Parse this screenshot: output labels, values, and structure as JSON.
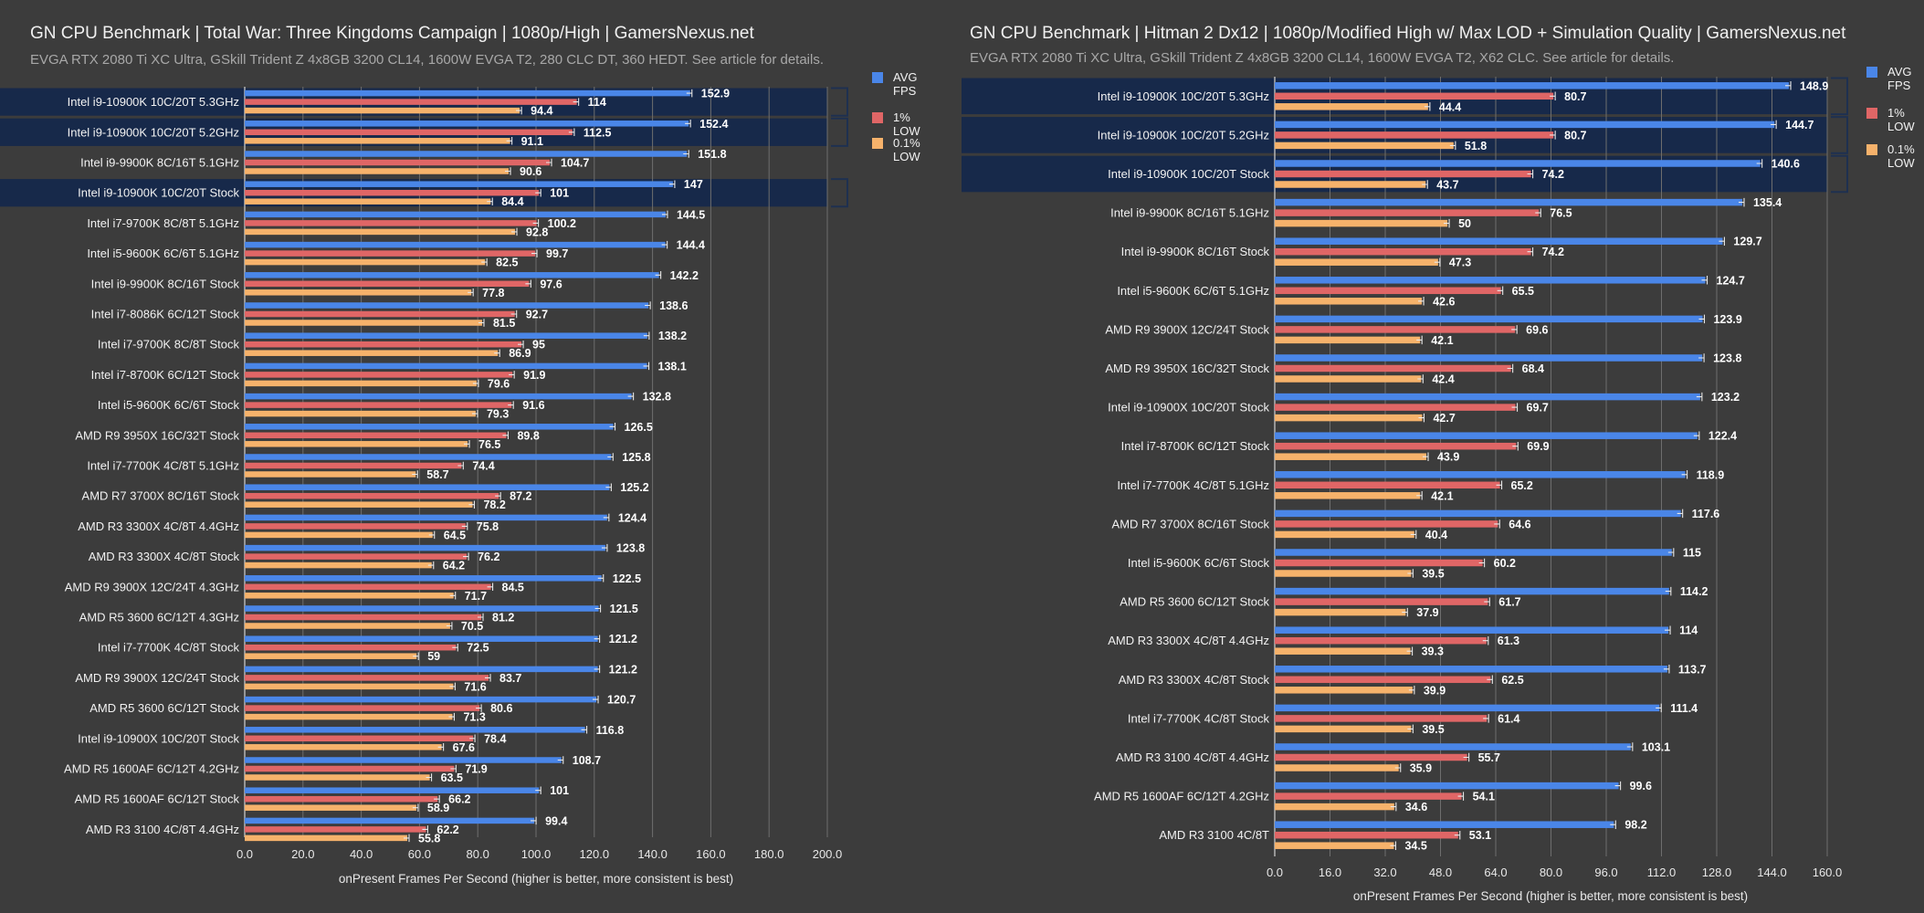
{
  "chart_data": [
    {
      "type": "bar",
      "title": "GN CPU Benchmark | Total War: Three Kingdoms Campaign | 1080p/High | GamersNexus.net",
      "subtitle": "EVGA RTX 2080 Ti XC Ultra, GSkill Trident Z 4x8GB 3200 CL14, 1600W EVGA T2, 280 CLC DT, 360 HEDT. See article for details.",
      "xlabel": "onPresent Frames Per Second (higher is better, more consistent is best)",
      "ylabel": "",
      "xlim": [
        0,
        200
      ],
      "xticks": [
        "0.0",
        "20.0",
        "40.0",
        "60.0",
        "80.0",
        "100.0",
        "120.0",
        "140.0",
        "160.0",
        "180.0",
        "200.0"
      ],
      "grid": true,
      "legend_position": "top-right",
      "highlighted": [
        "Intel i9-10900K 10C/20T 5.3GHz",
        "Intel i9-10900K 10C/20T 5.2GHz",
        "Intel i9-10900K 10C/20T Stock"
      ],
      "categories": [
        "Intel i9-10900K 10C/20T 5.3GHz",
        "Intel i9-10900K 10C/20T 5.2GHz",
        "Intel i9-9900K 8C/16T 5.1GHz",
        "Intel i9-10900K 10C/20T Stock",
        "Intel i7-9700K 8C/8T 5.1GHz",
        "Intel i5-9600K 6C/6T 5.1GHz",
        "Intel i9-9900K 8C/16T Stock",
        "Intel i7-8086K 6C/12T Stock",
        "Intel i7-9700K 8C/8T Stock",
        "Intel i7-8700K 6C/12T Stock",
        "Intel i5-9600K 6C/6T Stock",
        "AMD R9 3950X 16C/32T Stock",
        "Intel i7-7700K 4C/8T 5.1GHz",
        "AMD R7 3700X 8C/16T Stock",
        "AMD R3 3300X 4C/8T 4.4GHz",
        "AMD R3 3300X 4C/8T Stock",
        "AMD R9 3900X 12C/24T 4.3GHz",
        "AMD R5 3600 6C/12T 4.3GHz",
        "Intel i7-7700K 4C/8T Stock",
        "AMD R9 3900X 12C/24T Stock",
        "AMD R5 3600 6C/12T Stock",
        "Intel i9-10900X 10C/20T Stock",
        "AMD R5 1600AF 6C/12T 4.2GHz",
        "AMD R5 1600AF 6C/12T Stock",
        "AMD R3 3100 4C/8T 4.4GHz"
      ],
      "series": [
        {
          "name": "AVG FPS",
          "color": "#4a86e8",
          "values": [
            152.9,
            152.4,
            151.8,
            147.0,
            144.5,
            144.4,
            142.2,
            138.6,
            138.2,
            138.1,
            132.8,
            126.5,
            125.8,
            125.2,
            124.4,
            123.8,
            122.5,
            121.5,
            121.2,
            121.2,
            120.7,
            116.8,
            108.7,
            101.0,
            99.4
          ]
        },
        {
          "name": "1% LOW",
          "color": "#e06666",
          "values": [
            114.0,
            112.5,
            104.7,
            101.0,
            100.2,
            99.7,
            97.6,
            92.7,
            95.0,
            91.9,
            91.6,
            89.8,
            74.4,
            87.2,
            75.8,
            76.2,
            84.5,
            81.2,
            72.5,
            83.7,
            80.6,
            78.4,
            71.9,
            66.2,
            62.2
          ]
        },
        {
          "name": "0.1% LOW",
          "color": "#f6b26b",
          "values": [
            94.4,
            91.1,
            90.6,
            84.4,
            92.8,
            82.5,
            77.8,
            81.5,
            86.9,
            79.6,
            79.3,
            76.5,
            58.7,
            78.2,
            64.5,
            64.2,
            71.7,
            70.5,
            59.0,
            71.6,
            71.3,
            67.6,
            63.5,
            58.9,
            55.8
          ]
        }
      ]
    },
    {
      "type": "bar",
      "title": "GN CPU Benchmark | Hitman 2 Dx12 | 1080p/Modified High w/ Max LOD + Simulation Quality | GamersNexus.net",
      "subtitle": "EVGA RTX 2080 Ti XC Ultra, GSkill Trident Z 4x8GB 3200 CL14, 1600W EVGA T2, X62 CLC. See article for details.",
      "xlabel": "onPresent Frames Per Second (higher is better, more consistent is best)",
      "ylabel": "",
      "xlim": [
        0,
        160
      ],
      "xticks": [
        "0.0",
        "16.0",
        "32.0",
        "48.0",
        "64.0",
        "80.0",
        "96.0",
        "112.0",
        "128.0",
        "144.0",
        "160.0"
      ],
      "grid": true,
      "legend_position": "top-right",
      "highlighted": [
        "Intel i9-10900K 10C/20T 5.3GHz",
        "Intel i9-10900K 10C/20T 5.2GHz",
        "Intel i9-10900K 10C/20T Stock"
      ],
      "categories": [
        "Intel i9-10900K 10C/20T 5.3GHz",
        "Intel i9-10900K 10C/20T 5.2GHz",
        "Intel i9-10900K 10C/20T Stock",
        "Intel i9-9900K 8C/16T 5.1GHz",
        "Intel i9-9900K 8C/16T Stock",
        "Intel i5-9600K 6C/6T 5.1GHz",
        "AMD R9 3900X 12C/24T Stock",
        "AMD R9 3950X 16C/32T Stock",
        "Intel i9-10900X 10C/20T Stock",
        "Intel i7-8700K 6C/12T Stock",
        "Intel i7-7700K 4C/8T 5.1GHz",
        "AMD R7 3700X 8C/16T Stock",
        "Intel i5-9600K 6C/6T Stock",
        "AMD R5 3600 6C/12T Stock",
        "AMD R3 3300X 4C/8T 4.4GHz",
        "AMD R3 3300X 4C/8T Stock",
        "Intel i7-7700K 4C/8T Stock",
        "AMD R3 3100 4C/8T 4.4GHz",
        "AMD R5 1600AF 6C/12T 4.2GHz",
        "AMD R3 3100 4C/8T"
      ],
      "series": [
        {
          "name": "AVG FPS",
          "color": "#4a86e8",
          "values": [
            148.9,
            144.7,
            140.6,
            135.4,
            129.7,
            124.7,
            123.9,
            123.8,
            123.2,
            122.4,
            118.9,
            117.6,
            115.0,
            114.2,
            114.0,
            113.7,
            111.4,
            103.1,
            99.6,
            98.2
          ]
        },
        {
          "name": "1% LOW",
          "color": "#e06666",
          "values": [
            80.7,
            80.7,
            74.2,
            76.5,
            74.2,
            65.5,
            69.6,
            68.4,
            69.7,
            69.9,
            65.2,
            64.6,
            60.2,
            61.7,
            61.3,
            62.5,
            61.4,
            55.7,
            54.1,
            53.1
          ]
        },
        {
          "name": "0.1% LOW",
          "color": "#f6b26b",
          "values": [
            44.4,
            51.8,
            43.7,
            50.0,
            47.3,
            42.6,
            42.1,
            42.4,
            42.7,
            43.9,
            42.1,
            40.4,
            39.5,
            37.9,
            39.3,
            39.9,
            39.5,
            35.9,
            34.6,
            34.5
          ]
        }
      ]
    }
  ]
}
